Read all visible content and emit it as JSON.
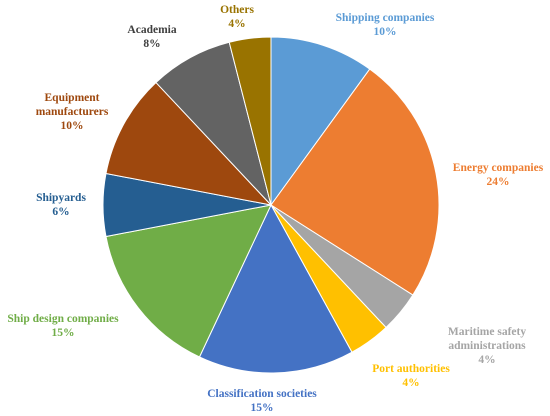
{
  "chart_data": {
    "type": "pie",
    "title": "",
    "slices": [
      {
        "name": "Shipping companies",
        "value": 10,
        "label": "10%",
        "color": "#5B9BD5"
      },
      {
        "name": "Energy companies",
        "value": 24,
        "label": "24%",
        "color": "#ED7D31"
      },
      {
        "name": "Maritime safety administrations",
        "value": 4,
        "label": "4%",
        "color": "#A5A5A5"
      },
      {
        "name": "Port authorities",
        "value": 4,
        "label": "4%",
        "color": "#FFC000"
      },
      {
        "name": "Classification societies",
        "value": 15,
        "label": "15%",
        "color": "#4472C4"
      },
      {
        "name": "Ship design companies",
        "value": 15,
        "label": "15%",
        "color": "#70AD47"
      },
      {
        "name": "Shipyards",
        "value": 6,
        "label": "6%",
        "color": "#255E91"
      },
      {
        "name": "Equipment manufacturers",
        "value": 10,
        "label": "10%",
        "color": "#9E480E"
      },
      {
        "name": "Academia",
        "value": 8,
        "label": "8%",
        "color": "#636363"
      },
      {
        "name": "Others",
        "value": 4,
        "label": "4%",
        "color": "#997300"
      }
    ],
    "legend": "none",
    "data_labels": "outside"
  }
}
